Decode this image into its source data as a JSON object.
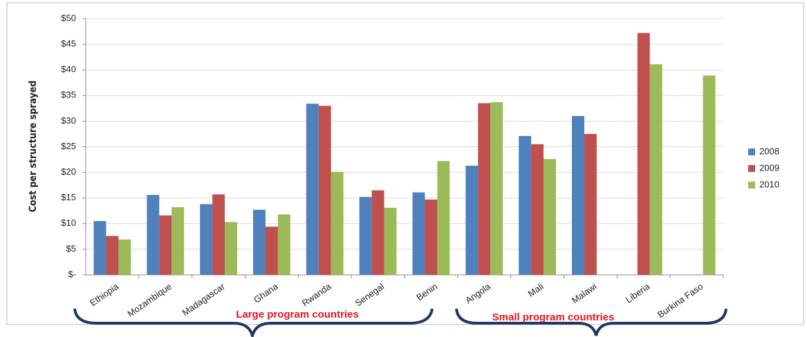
{
  "chart_data": {
    "type": "bar",
    "y_label": "Cost per structure sprayed",
    "categories": [
      "Ethiopia",
      "Mozambique",
      "Madagascar",
      "Ghana",
      "Rwanda",
      "Senegal",
      "Benin",
      "Angola",
      "Mali",
      "Malawi",
      "Liberia",
      "Burkina Faso"
    ],
    "series": [
      {
        "name": "2008",
        "color": "#4f81bd",
        "values": [
          10.5,
          15.6,
          13.8,
          12.7,
          33.4,
          15.2,
          16.1,
          21.3,
          27.1,
          31.0,
          null,
          null
        ]
      },
      {
        "name": "2009",
        "color": "#c0504d",
        "values": [
          7.6,
          11.6,
          15.7,
          9.4,
          33.0,
          16.5,
          14.7,
          33.5,
          25.5,
          27.5,
          47.2,
          null
        ]
      },
      {
        "name": "2010",
        "color": "#9bbb59",
        "values": [
          6.9,
          13.2,
          10.3,
          11.8,
          20.1,
          13.1,
          22.2,
          33.7,
          22.6,
          null,
          41.1,
          38.9
        ]
      }
    ],
    "ylim": [
      0,
      50
    ],
    "yticks": [
      {
        "value": 0,
        "label": "$-"
      },
      {
        "value": 5,
        "label": "$5"
      },
      {
        "value": 10,
        "label": "$10"
      },
      {
        "value": 15,
        "label": "$15"
      },
      {
        "value": 20,
        "label": "$20"
      },
      {
        "value": 25,
        "label": "$25"
      },
      {
        "value": 30,
        "label": "$30"
      },
      {
        "value": 35,
        "label": "$35"
      },
      {
        "value": 40,
        "label": "$40"
      },
      {
        "value": 45,
        "label": "$45"
      },
      {
        "value": 50,
        "label": "$50"
      }
    ],
    "grid": true,
    "legend": "right",
    "annotations": [
      "Large program countries",
      "Small program countries"
    ]
  }
}
